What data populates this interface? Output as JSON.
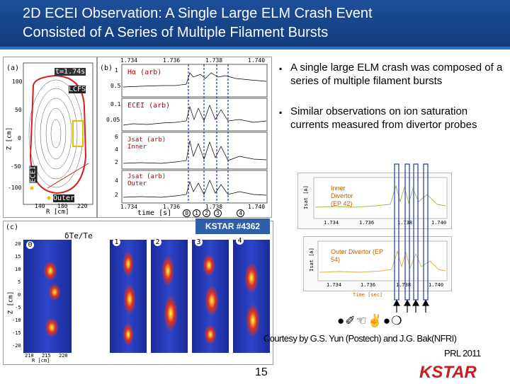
{
  "slide": {
    "title_line1": "2D ECEI Observation: A Single Large ELM Crash Event",
    "title_line2": "Consisted of A Series of Multiple Filament Bursts",
    "page_number": "15"
  },
  "bullets": [
    "A single large ELM crash was composed of a series of multiple filament bursts",
    "Similar observations on ion saturation currents measured from divertor probes"
  ],
  "figure_a": {
    "label": "(a)",
    "time_label": "t=1.74s",
    "lcfs": "LCFS",
    "ecei": "ECEI",
    "outer": "Outer",
    "z_axis": "Z [cm]",
    "r_axis": "R [cm]",
    "z_ticks": [
      "100",
      "50",
      "0",
      "-50",
      "-100"
    ],
    "r_ticks": [
      "140",
      "180",
      "220"
    ]
  },
  "figure_b": {
    "label": "(b)",
    "top_ticks": [
      "1.734",
      "1.736",
      "1.738",
      "1.740"
    ],
    "bottom_ticks": [
      "1.734",
      "1.736",
      "1.738",
      "1.740"
    ],
    "xlabel": "time [s]",
    "traces": [
      {
        "name": "Hα (arb)",
        "ticks": [
          "1",
          "0.5"
        ]
      },
      {
        "name": "ECEI (arb)",
        "ticks": [
          "0.1",
          "0.05"
        ]
      },
      {
        "name": "Jsat (arb) Inner",
        "ticks": [
          "6",
          "4",
          "2"
        ]
      },
      {
        "name": "Jsat (arb) Outer",
        "ticks": [
          "4",
          "2"
        ]
      }
    ],
    "markers": [
      "0",
      "1",
      "2",
      "3",
      "4"
    ]
  },
  "figure_c": {
    "label": "(c)",
    "quantity": "δTe/Te",
    "z_axis": "Z [cm]",
    "r_axis": "R [cm]",
    "frames": [
      "0",
      "1",
      "2",
      "3",
      "4"
    ],
    "z_ticks": [
      "20",
      "15",
      "10",
      "5",
      "0",
      "-5",
      "-10",
      "-15",
      "-20"
    ],
    "r_ticks": [
      "210",
      "215",
      "220"
    ]
  },
  "shot": "KSTAR #4362",
  "probes": {
    "inner_label": "Inner Divertor (EP 42)",
    "outer_label": "Outer Divertor (EP 54)",
    "ylabel": "Isat [A]",
    "inner_ticks": [
      "1.734",
      "1.736",
      "1.738",
      "1.740"
    ],
    "outer_ticks": [
      "1.734",
      "1.736",
      "1.738",
      "1.740"
    ],
    "xlabel": "Time [sec]"
  },
  "credits": {
    "courtesy": "Courtesy by G.S. Yun (Postech) and J.G. Bak(NFRI)",
    "reference": "PRL 2011",
    "glyph_row": "●✐☜✌●❍"
  },
  "logo": {
    "text": "KSTAR"
  },
  "colors": {
    "header_bg": "#1d4f9a",
    "badge_bg": "#2f5fa8",
    "marker_line": "#1a3aa8",
    "probe_trace": "#8fbf3a",
    "probe_label": "#c06000"
  }
}
